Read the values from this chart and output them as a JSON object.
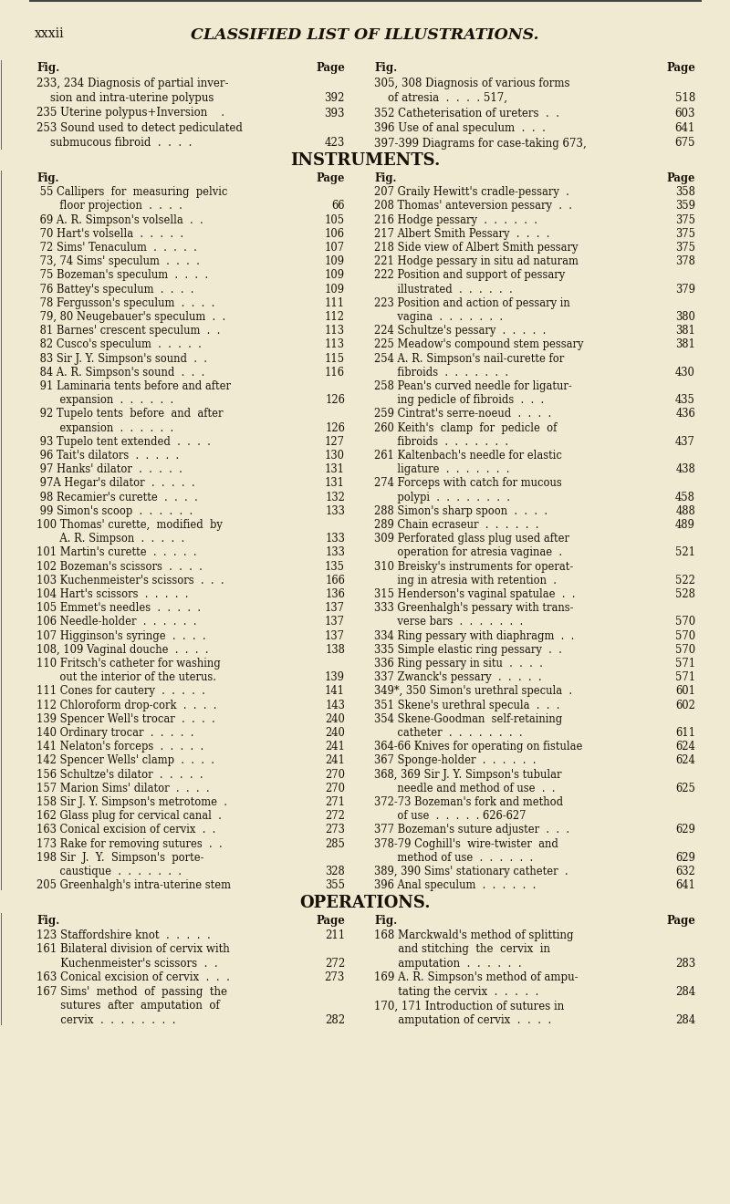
{
  "bg_color": "#f0ead2",
  "text_color": "#1a1008",
  "page_header_left": "xxxii",
  "page_header_title": "CLASSIFIED LIST OF ILLUSTRATIONS.",
  "figsize": [
    8.0,
    13.2
  ],
  "dpi": 100,
  "top_section_left": [
    [
      "Fig.",
      "Page",
      true
    ],
    [
      "233, 234 Diagnosis of partial inver-",
      "",
      false
    ],
    [
      "    sion and intra-uterine polypus",
      "392",
      false
    ],
    [
      "235 Uterine polypus+Inversion    .",
      "393",
      false
    ],
    [
      "253 Sound used to detect pediculated",
      "",
      false
    ],
    [
      "    submucous fibroid  .  .  .  .",
      "423",
      false
    ]
  ],
  "top_section_right": [
    [
      "Fig.",
      "Page",
      true
    ],
    [
      "305, 308 Diagnosis of various forms",
      "",
      false
    ],
    [
      "    of atresia  .  .  .  . 517,",
      "518",
      false
    ],
    [
      "352 Catheterisation of ureters  .  .",
      "603",
      false
    ],
    [
      "396 Use of anal speculum  .  .  .",
      "641",
      false
    ],
    [
      "397-399 Diagrams for case-taking 673,",
      "675",
      false
    ]
  ],
  "instruments_left": [
    [
      "Fig.",
      "Page",
      true
    ],
    [
      " 55 Callipers  for  measuring  pelvic",
      "",
      false
    ],
    [
      "       floor projection  .  .  .  .",
      "66",
      false
    ],
    [
      " 69 A. R. Simpson's volsella  .  .",
      "105",
      false
    ],
    [
      " 70 Hart's volsella  .  .  .  .  .",
      "106",
      false
    ],
    [
      " 72 Sims' Tenaculum  .  .  .  .  .",
      "107",
      false
    ],
    [
      " 73, 74 Sims' speculum  .  .  .  .",
      "109",
      false
    ],
    [
      " 75 Bozeman's speculum  .  .  .  .",
      "109",
      false
    ],
    [
      " 76 Battey's speculum  .  .  .  .",
      "109",
      false
    ],
    [
      " 78 Fergusson's speculum  .  .  .  .",
      "111",
      false
    ],
    [
      " 79, 80 Neugebauer's speculum  .  .",
      "112",
      false
    ],
    [
      " 81 Barnes' crescent speculum  .  .",
      "113",
      false
    ],
    [
      " 82 Cusco's speculum  .  .  .  .  .",
      "113",
      false
    ],
    [
      " 83 Sir J. Y. Simpson's sound  .  .",
      "115",
      false
    ],
    [
      " 84 A. R. Simpson's sound  .  .  .",
      "116",
      false
    ],
    [
      " 91 Laminaria tents before and after",
      "",
      false
    ],
    [
      "       expansion  .  .  .  .  .  .",
      "126",
      false
    ],
    [
      " 92 Tupelo tents  before  and  after",
      "",
      false
    ],
    [
      "       expansion  .  .  .  .  .  .",
      "126",
      false
    ],
    [
      " 93 Tupelo tent extended  .  .  .  .",
      "127",
      false
    ],
    [
      " 96 Tait's dilators  .  .  .  .  .",
      "130",
      false
    ],
    [
      " 97 Hanks' dilator  .  .  .  .  .",
      "131",
      false
    ],
    [
      " 97A Hegar's dilator  .  .  .  .  .",
      "131",
      false
    ],
    [
      " 98 Recamier's curette  .  .  .  .",
      "132",
      false
    ],
    [
      " 99 Simon's scoop  .  .  .  .  .  .",
      "133",
      false
    ],
    [
      "100 Thomas' curette,  modified  by",
      "",
      false
    ],
    [
      "       A. R. Simpson  .  .  .  .  .",
      "133",
      false
    ],
    [
      "101 Martin's curette  .  .  .  .  .",
      "133",
      false
    ],
    [
      "102 Bozeman's scissors  .  .  .  .",
      "135",
      false
    ],
    [
      "103 Kuchenmeister's scissors  .  .  .",
      "166",
      false
    ],
    [
      "104 Hart's scissors  .  .  .  .  .",
      "136",
      false
    ],
    [
      "105 Emmet's needles  .  .  .  .  .",
      "137",
      false
    ],
    [
      "106 Needle-holder  .  .  .  .  .  .",
      "137",
      false
    ],
    [
      "107 Higginson's syringe  .  .  .  .",
      "137",
      false
    ],
    [
      "108, 109 Vaginal douche  .  .  .  .",
      "138",
      false
    ],
    [
      "110 Fritsch's catheter for washing",
      "",
      false
    ],
    [
      "       out the interior of the uterus.",
      "139",
      false
    ],
    [
      "111 Cones for cautery  .  .  .  .  .",
      "141",
      false
    ],
    [
      "112 Chloroform drop-cork  .  .  .  .",
      "143",
      false
    ],
    [
      "139 Spencer Well's trocar  .  .  .  .",
      "240",
      false
    ],
    [
      "140 Ordinary trocar  .  .  .  .  .",
      "240",
      false
    ],
    [
      "141 Nelaton's forceps  .  .  .  .  .",
      "241",
      false
    ],
    [
      "142 Spencer Wells' clamp  .  .  .  .",
      "241",
      false
    ],
    [
      "156 Schultze's dilator  .  .  .  .  .",
      "270",
      false
    ],
    [
      "157 Marion Sims' dilator  .  .  .  .",
      "270",
      false
    ],
    [
      "158 Sir J. Y. Simpson's metrotome  .",
      "271",
      false
    ],
    [
      "162 Glass plug for cervical canal  .",
      "272",
      false
    ],
    [
      "163 Conical excision of cervix  .  .",
      "273",
      false
    ],
    [
      "173 Rake for removing sutures  .  .",
      "285",
      false
    ],
    [
      "198 Sir  J.  Y.  Simpson's  porte-",
      "",
      false
    ],
    [
      "       caustique  .  .  .  .  .  .  .",
      "328",
      false
    ],
    [
      "205 Greenhalgh's intra-uterine stem",
      "355",
      false
    ]
  ],
  "instruments_right": [
    [
      "Fig.",
      "Page",
      true
    ],
    [
      "207 Graily Hewitt's cradle-pessary  .",
      "358",
      false
    ],
    [
      "208 Thomas' anteversion pessary  .  .",
      "359",
      false
    ],
    [
      "216 Hodge pessary  .  .  .  .  .  .",
      "375",
      false
    ],
    [
      "217 Albert Smith Pessary  .  .  .  .",
      "375",
      false
    ],
    [
      "218 Side view of Albert Smith pessary",
      "375",
      false
    ],
    [
      "221 Hodge pessary in situ ad naturam",
      "378",
      false
    ],
    [
      "222 Position and support of pessary",
      "",
      false
    ],
    [
      "       illustrated  .  .  .  .  .  .",
      "379",
      false
    ],
    [
      "223 Position and action of pessary in",
      "",
      false
    ],
    [
      "       vagina  .  .  .  .  .  .  .",
      "380",
      false
    ],
    [
      "224 Schultze's pessary  .  .  .  .  .",
      "381",
      false
    ],
    [
      "225 Meadow's compound stem pessary",
      "381",
      false
    ],
    [
      "254 A. R. Simpson's nail-curette for",
      "",
      false
    ],
    [
      "       fibroids  .  .  .  .  .  .  .",
      "430",
      false
    ],
    [
      "258 Pean's curved needle for ligatur-",
      "",
      false
    ],
    [
      "       ing pedicle of fibroids  .  .  .",
      "435",
      false
    ],
    [
      "259 Cintrat's serre-noeud  .  .  .  .",
      "436",
      false
    ],
    [
      "260 Keith's  clamp  for  pedicle  of",
      "",
      false
    ],
    [
      "       fibroids  .  .  .  .  .  .  .",
      "437",
      false
    ],
    [
      "261 Kaltenbach's needle for elastic",
      "",
      false
    ],
    [
      "       ligature  .  .  .  .  .  .  .",
      "438",
      false
    ],
    [
      "274 Forceps with catch for mucous",
      "",
      false
    ],
    [
      "       polypi  .  .  .  .  .  .  .  .",
      "458",
      false
    ],
    [
      "288 Simon's sharp spoon  .  .  .  .",
      "488",
      false
    ],
    [
      "289 Chain ecraseur  .  .  .  .  .  .",
      "489",
      false
    ],
    [
      "309 Perforated glass plug used after",
      "",
      false
    ],
    [
      "       operation for atresia vaginae  .",
      "521",
      false
    ],
    [
      "310 Breisky's instruments for operat-",
      "",
      false
    ],
    [
      "       ing in atresia with retention  .",
      "522",
      false
    ],
    [
      "315 Henderson's vaginal spatulae  .  .",
      "528",
      false
    ],
    [
      "333 Greenhalgh's pessary with trans-",
      "",
      false
    ],
    [
      "       verse bars  .  .  .  .  .  .  .",
      "570",
      false
    ],
    [
      "334 Ring pessary with diaphragm  .  .",
      "570",
      false
    ],
    [
      "335 Simple elastic ring pessary  .  .",
      "570",
      false
    ],
    [
      "336 Ring pessary in situ  .  .  .  .",
      "571",
      false
    ],
    [
      "337 Zwanck's pessary  .  .  .  .  .",
      "571",
      false
    ],
    [
      "349*, 350 Simon's urethral specula  .",
      "601",
      false
    ],
    [
      "351 Skene's urethral specula  .  .  .",
      "602",
      false
    ],
    [
      "354 Skene-Goodman  self-retaining",
      "",
      false
    ],
    [
      "       catheter  .  .  .  .  .  .  .  .",
      "611",
      false
    ],
    [
      "364-66 Knives for operating on fistulae",
      "624",
      false
    ],
    [
      "367 Sponge-holder  .  .  .  .  .  .",
      "624",
      false
    ],
    [
      "368, 369 Sir J. Y. Simpson's tubular",
      "",
      false
    ],
    [
      "       needle and method of use  .  .",
      "625",
      false
    ],
    [
      "372-73 Bozeman's fork and method",
      "",
      false
    ],
    [
      "       of use  .  .  .  .  . 626-627",
      "",
      false
    ],
    [
      "377 Bozeman's suture adjuster  .  .  .",
      "629",
      false
    ],
    [
      "378-79 Coghill's  wire-twister  and",
      "",
      false
    ],
    [
      "       method of use  .  .  .  .  .  .",
      "629",
      false
    ],
    [
      "389, 390 Sims' stationary catheter  .",
      "632",
      false
    ],
    [
      "396 Anal speculum  .  .  .  .  .  .",
      "641",
      false
    ]
  ],
  "operations_left": [
    [
      "Fig.",
      "Page",
      true
    ],
    [
      "123 Staffordshire knot  .  .  .  .  .",
      "211",
      false
    ],
    [
      "161 Bilateral division of cervix with",
      "",
      false
    ],
    [
      "       Kuchenmeister's scissors  .  .",
      "272",
      false
    ],
    [
      "163 Conical excision of cervix  .  .  .",
      "273",
      false
    ],
    [
      "167 Sims'  method  of  passing  the",
      "",
      false
    ],
    [
      "       sutures  after  amputation  of",
      "",
      false
    ],
    [
      "       cervix  .  .  .  .  .  .  .  .",
      "282",
      false
    ]
  ],
  "operations_right": [
    [
      "Fig.",
      "Page",
      true
    ],
    [
      "168 Marckwald's method of splitting",
      "",
      false
    ],
    [
      "       and stitching  the  cervix  in",
      "",
      false
    ],
    [
      "       amputation  .  .  .  .  .  .",
      "283",
      false
    ],
    [
      "169 A. R. Simpson's method of ampu-",
      "",
      false
    ],
    [
      "       tating the cervix  .  .  .  .  .",
      "284",
      false
    ],
    [
      "170, 171 Introduction of sutures in",
      "",
      false
    ],
    [
      "       amputation of cervix  .  .  .  .",
      "284",
      false
    ]
  ]
}
